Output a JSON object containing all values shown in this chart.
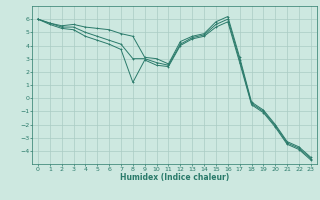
{
  "xlabel": "Humidex (Indice chaleur)",
  "background_color": "#cde8e0",
  "grid_color": "#aaccc4",
  "line_color": "#2a7a6a",
  "xlim": [
    -0.5,
    23.5
  ],
  "ylim": [
    -5.0,
    7.0
  ],
  "yticks": [
    6,
    5,
    4,
    3,
    2,
    1,
    0,
    -1,
    -2,
    -3,
    -4
  ],
  "xticks": [
    0,
    1,
    2,
    3,
    4,
    5,
    6,
    7,
    8,
    9,
    10,
    11,
    12,
    13,
    14,
    15,
    16,
    17,
    18,
    19,
    20,
    21,
    22,
    23
  ],
  "curve1_x": [
    0,
    1,
    2,
    3,
    4,
    5,
    6,
    7,
    8,
    9,
    10,
    11,
    12,
    13,
    14,
    15,
    16,
    17,
    18,
    19,
    20,
    21,
    22,
    23
  ],
  "curve1_y": [
    6.0,
    5.7,
    5.5,
    5.6,
    5.4,
    5.3,
    5.2,
    4.9,
    4.7,
    3.1,
    3.0,
    2.6,
    4.3,
    4.7,
    4.9,
    5.8,
    6.2,
    3.1,
    -0.3,
    -0.9,
    -2.0,
    -3.3,
    -3.7,
    -4.5
  ],
  "curve2_x": [
    0,
    1,
    2,
    3,
    4,
    5,
    6,
    7,
    8,
    9,
    10,
    11,
    12,
    13,
    14,
    15,
    16,
    17,
    18,
    19,
    20,
    21,
    22,
    23
  ],
  "curve2_y": [
    6.0,
    5.7,
    5.4,
    5.4,
    5.0,
    4.7,
    4.4,
    4.1,
    3.0,
    3.0,
    2.7,
    2.5,
    4.1,
    4.6,
    4.8,
    5.6,
    6.0,
    2.9,
    -0.4,
    -1.0,
    -2.1,
    -3.4,
    -3.8,
    -4.6
  ],
  "curve3_x": [
    0,
    1,
    2,
    3,
    4,
    5,
    6,
    7,
    8,
    9,
    10,
    11,
    12,
    13,
    14,
    15,
    16,
    17,
    18,
    19,
    20,
    21,
    22,
    23
  ],
  "curve3_y": [
    6.0,
    5.6,
    5.3,
    5.2,
    4.7,
    4.4,
    4.1,
    3.7,
    1.2,
    2.9,
    2.5,
    2.4,
    4.0,
    4.5,
    4.7,
    5.4,
    5.8,
    2.7,
    -0.5,
    -1.1,
    -2.2,
    -3.5,
    -3.9,
    -4.7
  ]
}
